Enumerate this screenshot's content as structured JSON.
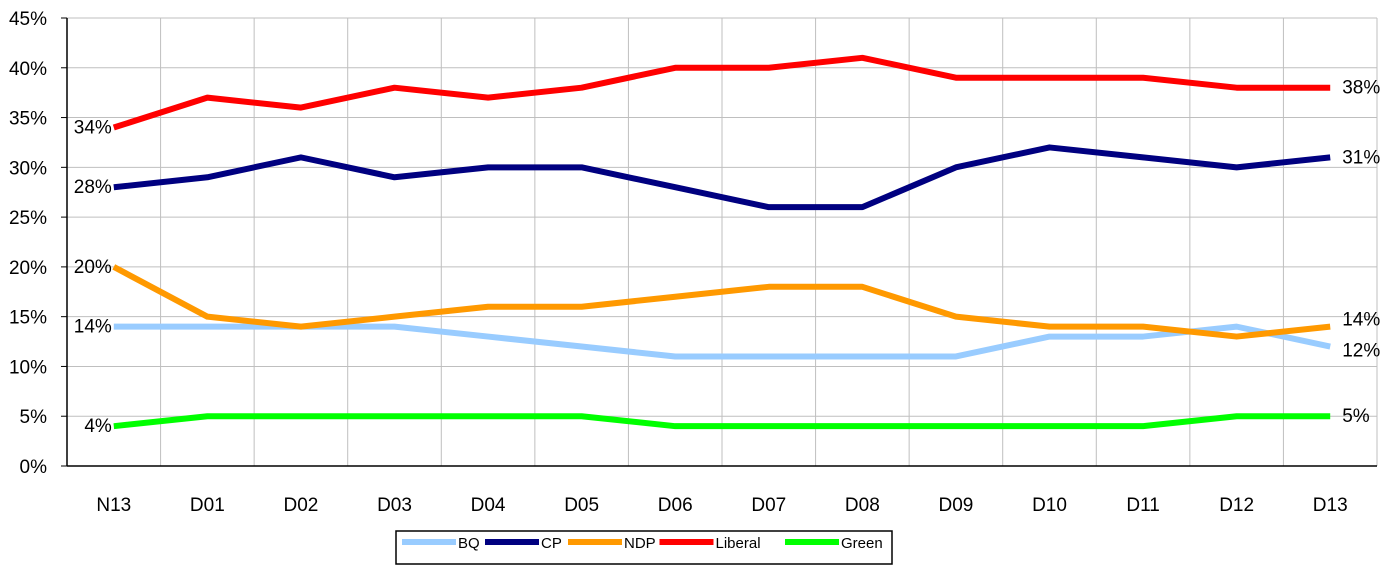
{
  "chart_data": {
    "type": "line",
    "title": "",
    "xlabel": "",
    "ylabel": "",
    "categories": [
      "N13",
      "D01",
      "D02",
      "D03",
      "D04",
      "D05",
      "D06",
      "D07",
      "D08",
      "D09",
      "D10",
      "D11",
      "D12",
      "D13"
    ],
    "ylim": [
      0,
      45
    ],
    "yticks": [
      0,
      5,
      10,
      15,
      20,
      25,
      30,
      35,
      40,
      45
    ],
    "ytick_labels": [
      "0%",
      "5%",
      "10%",
      "15%",
      "20%",
      "25%",
      "30%",
      "35%",
      "40%",
      "45%"
    ],
    "grid": true,
    "legend_position": "bottom",
    "series": [
      {
        "name": "BQ",
        "color": "#99ccff",
        "values": [
          14,
          14,
          14,
          14,
          13,
          12,
          11,
          11,
          11,
          11,
          13,
          13,
          14,
          12
        ]
      },
      {
        "name": "CP",
        "color": "#000080",
        "values": [
          28,
          29,
          31,
          29,
          30,
          30,
          28,
          26,
          26,
          30,
          32,
          31,
          30,
          31
        ]
      },
      {
        "name": "NDP",
        "color": "#ff9900",
        "values": [
          20,
          15,
          14,
          15,
          16,
          16,
          17,
          18,
          18,
          15,
          14,
          14,
          13,
          14
        ]
      },
      {
        "name": "Liberal",
        "color": "#ff0000",
        "values": [
          34,
          37,
          36,
          38,
          37,
          38,
          40,
          40,
          41,
          39,
          39,
          39,
          38,
          38
        ]
      },
      {
        "name": "Green",
        "color": "#00ff00",
        "values": [
          4,
          5,
          5,
          5,
          5,
          5,
          4,
          4,
          4,
          4,
          4,
          4,
          5,
          5
        ]
      }
    ],
    "start_labels": [
      "14%",
      "28%",
      "20%",
      "34%",
      "4%"
    ],
    "end_labels": [
      "12%",
      "31%",
      "14%",
      "38%",
      "5%"
    ]
  }
}
